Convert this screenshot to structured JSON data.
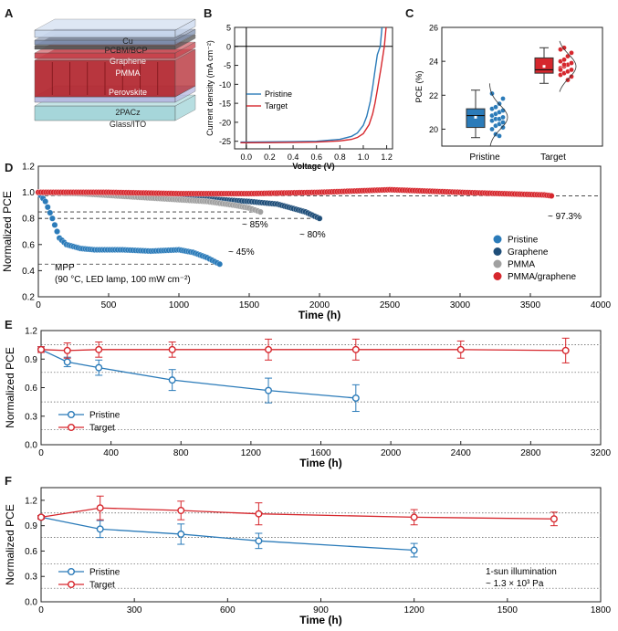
{
  "panels": {
    "A": "A",
    "B": "B",
    "C": "C",
    "D": "D",
    "E": "E",
    "F": "F"
  },
  "device_stack": {
    "layers": [
      "Cu",
      "PCBM/BCP",
      "Graphene",
      "PMMA",
      "Perovskite",
      "2PACz",
      "Glass/ITO"
    ],
    "colors": {
      "cu": "#c9d8ee",
      "perovskite": "#b3262e",
      "pmma": "#c84049",
      "ito": "#9fd3d7",
      "pacz": "#b5b8e0"
    }
  },
  "colors": {
    "pristine": "#2b7bb9",
    "target": "#d6272d",
    "graphene": "#1f4e79",
    "pmma": "#a0a0a0",
    "pmma_graphene": "#d6272d"
  },
  "chart_data": [
    {
      "panel": "B",
      "type": "line",
      "xlabel": "Voltage (V)",
      "ylabel": "Current density (mA cm⁻²)",
      "xlim": [
        -0.1,
        1.25
      ],
      "ylim": [
        -27,
        5
      ],
      "xticks": [
        "0.0",
        "0.2",
        "0.4",
        "0.6",
        "0.8",
        "1.0",
        "1.2"
      ],
      "yticks": [
        "5",
        "0",
        "-5",
        "-10",
        "-15",
        "-20",
        "-25"
      ],
      "legend_position": "center-left",
      "series": [
        {
          "name": "Pristine",
          "color": "#2b7bb9",
          "jsc": -25.2,
          "voc": 1.145,
          "x": [
            -0.05,
            0,
            0.2,
            0.4,
            0.6,
            0.8,
            0.9,
            0.95,
            1.0,
            1.03,
            1.06,
            1.08,
            1.1,
            1.12,
            1.145,
            1.16
          ],
          "y": [
            -25.2,
            -25.2,
            -25.15,
            -25.1,
            -25.0,
            -24.5,
            -23.7,
            -22.8,
            -20.8,
            -18.4,
            -14.5,
            -10.8,
            -6.4,
            -2.2,
            0,
            5
          ]
        },
        {
          "name": "Target",
          "color": "#d6272d",
          "jsc": -25.4,
          "voc": 1.18,
          "x": [
            -0.05,
            0,
            0.2,
            0.4,
            0.6,
            0.8,
            0.9,
            0.95,
            1.0,
            1.05,
            1.08,
            1.1,
            1.12,
            1.15,
            1.18,
            1.195
          ],
          "y": [
            -25.4,
            -25.4,
            -25.35,
            -25.3,
            -25.2,
            -24.9,
            -24.5,
            -24.0,
            -23.0,
            -20.6,
            -17.8,
            -15.0,
            -11.5,
            -6.0,
            0,
            5
          ]
        }
      ]
    },
    {
      "panel": "C",
      "type": "box",
      "ylabel": "PCE (%)",
      "ylim": [
        19,
        26
      ],
      "yticks": [
        "20",
        "22",
        "24",
        "26"
      ],
      "categories": [
        "Pristine",
        "Target"
      ],
      "series": [
        {
          "name": "Pristine",
          "color": "#2b7bb9",
          "min": 19.5,
          "q1": 20.1,
          "median": 20.8,
          "mean": 20.7,
          "q3": 21.2,
          "max": 22.3,
          "points": [
            20.0,
            20.2,
            20.3,
            20.4,
            20.5,
            20.6,
            20.6,
            20.7,
            20.8,
            20.9,
            21.0,
            21.1,
            21.2,
            21.3,
            21.5,
            21.8,
            22.1,
            19.7,
            19.6,
            20.1
          ]
        },
        {
          "name": "Target",
          "color": "#d6272d",
          "min": 22.7,
          "q1": 23.3,
          "median": 23.5,
          "mean": 23.7,
          "q3": 24.2,
          "max": 24.8,
          "points": [
            23.2,
            23.3,
            23.4,
            23.5,
            23.6,
            23.7,
            23.8,
            23.9,
            24.0,
            24.1,
            24.3,
            24.5,
            24.7,
            24.8,
            22.9,
            23.1,
            23.5,
            23.8
          ]
        }
      ]
    },
    {
      "panel": "D",
      "type": "scatter",
      "xlabel": "Time (h)",
      "ylabel": "Normalized PCE",
      "xlim": [
        0,
        4000
      ],
      "ylim": [
        0.2,
        1.2
      ],
      "xticks": [
        "0",
        "500",
        "1000",
        "1500",
        "2000",
        "2500",
        "3000",
        "3500",
        "4000"
      ],
      "yticks": [
        "0.2",
        "0.4",
        "0.6",
        "0.8",
        "1.0",
        "1.2"
      ],
      "legend_position": "lower-right",
      "annotations": [
        "~ 97.3%",
        "~ 85%",
        "~ 80%",
        "~ 45%"
      ],
      "condition_text": [
        "MPP",
        "(90 °C, LED lamp, 100 mW cm⁻²)"
      ],
      "reference_lines": [
        0.973,
        0.85,
        0.8,
        0.45
      ],
      "series": [
        {
          "name": "Pristine",
          "color": "#2b7bb9",
          "x": [
            0,
            50,
            100,
            150,
            200,
            300,
            400,
            600,
            800,
            1000,
            1100,
            1200,
            1290
          ],
          "y": [
            1.0,
            0.93,
            0.8,
            0.65,
            0.6,
            0.57,
            0.56,
            0.56,
            0.55,
            0.56,
            0.54,
            0.5,
            0.45
          ]
        },
        {
          "name": "Graphene",
          "color": "#1f4e79",
          "x": [
            0,
            300,
            600,
            900,
            1200,
            1500,
            1700,
            1800,
            1900,
            2000
          ],
          "y": [
            1.0,
            0.99,
            0.98,
            0.96,
            0.95,
            0.93,
            0.91,
            0.88,
            0.85,
            0.8
          ]
        },
        {
          "name": "PMMA",
          "color": "#a0a0a0",
          "x": [
            0,
            300,
            600,
            900,
            1200,
            1400,
            1500,
            1580
          ],
          "y": [
            1.0,
            0.99,
            0.97,
            0.95,
            0.93,
            0.9,
            0.88,
            0.85
          ]
        },
        {
          "name": "PMMA/graphene",
          "color": "#d6272d",
          "x": [
            0,
            500,
            1000,
            1500,
            2000,
            2500,
            3000,
            3300,
            3600,
            3650
          ],
          "y": [
            1.0,
            1.0,
            0.99,
            0.99,
            1.0,
            1.02,
            1.0,
            0.99,
            0.98,
            0.973
          ]
        }
      ]
    },
    {
      "panel": "E",
      "type": "line",
      "xlabel": "Time (h)",
      "ylabel": "Normalized PCE",
      "xlim": [
        0,
        3200
      ],
      "ylim": [
        0,
        1.2
      ],
      "xticks": [
        "0",
        "400",
        "800",
        "1200",
        "1600",
        "2000",
        "2400",
        "2800",
        "3200"
      ],
      "yticks": [
        "0.0",
        "0.3",
        "0.6",
        "0.9",
        "1.2"
      ],
      "legend_position": "lower-left",
      "series": [
        {
          "name": "Pristine",
          "color": "#2b7bb9",
          "x": [
            0,
            150,
            330,
            750,
            1300,
            1800
          ],
          "y": [
            1.0,
            0.87,
            0.81,
            0.68,
            0.57,
            0.49
          ],
          "err": [
            0.03,
            0.05,
            0.08,
            0.11,
            0.13,
            0.14
          ]
        },
        {
          "name": "Target",
          "color": "#d6272d",
          "x": [
            0,
            150,
            330,
            750,
            1300,
            1800,
            2400,
            3000
          ],
          "y": [
            1.0,
            0.99,
            1.0,
            1.0,
            1.0,
            1.0,
            1.0,
            0.99
          ],
          "err": [
            0.03,
            0.08,
            0.08,
            0.08,
            0.11,
            0.11,
            0.09,
            0.13
          ]
        }
      ]
    },
    {
      "panel": "F",
      "type": "line",
      "xlabel": "Time (h)",
      "ylabel": "Normalized PCE",
      "xlim": [
        0,
        1800
      ],
      "ylim": [
        0,
        1.35
      ],
      "xticks": [
        "0",
        "300",
        "600",
        "900",
        "1200",
        "1500",
        "1800"
      ],
      "yticks": [
        "0.0",
        "0.3",
        "0.6",
        "0.9",
        "1.2"
      ],
      "legend_position": "lower-left",
      "condition_text": [
        "1-sun illumination",
        "~ 1.3 × 10³ Pa"
      ],
      "series": [
        {
          "name": "Pristine",
          "color": "#2b7bb9",
          "x": [
            0,
            190,
            450,
            700,
            1200
          ],
          "y": [
            1.0,
            0.86,
            0.8,
            0.72,
            0.61
          ],
          "err": [
            0.02,
            0.1,
            0.12,
            0.09,
            0.08
          ]
        },
        {
          "name": "Target",
          "color": "#d6272d",
          "x": [
            0,
            190,
            450,
            700,
            1200,
            1650
          ],
          "y": [
            1.0,
            1.11,
            1.08,
            1.04,
            1.0,
            0.98
          ],
          "err": [
            0.02,
            0.14,
            0.11,
            0.13,
            0.09,
            0.08
          ]
        }
      ]
    }
  ]
}
